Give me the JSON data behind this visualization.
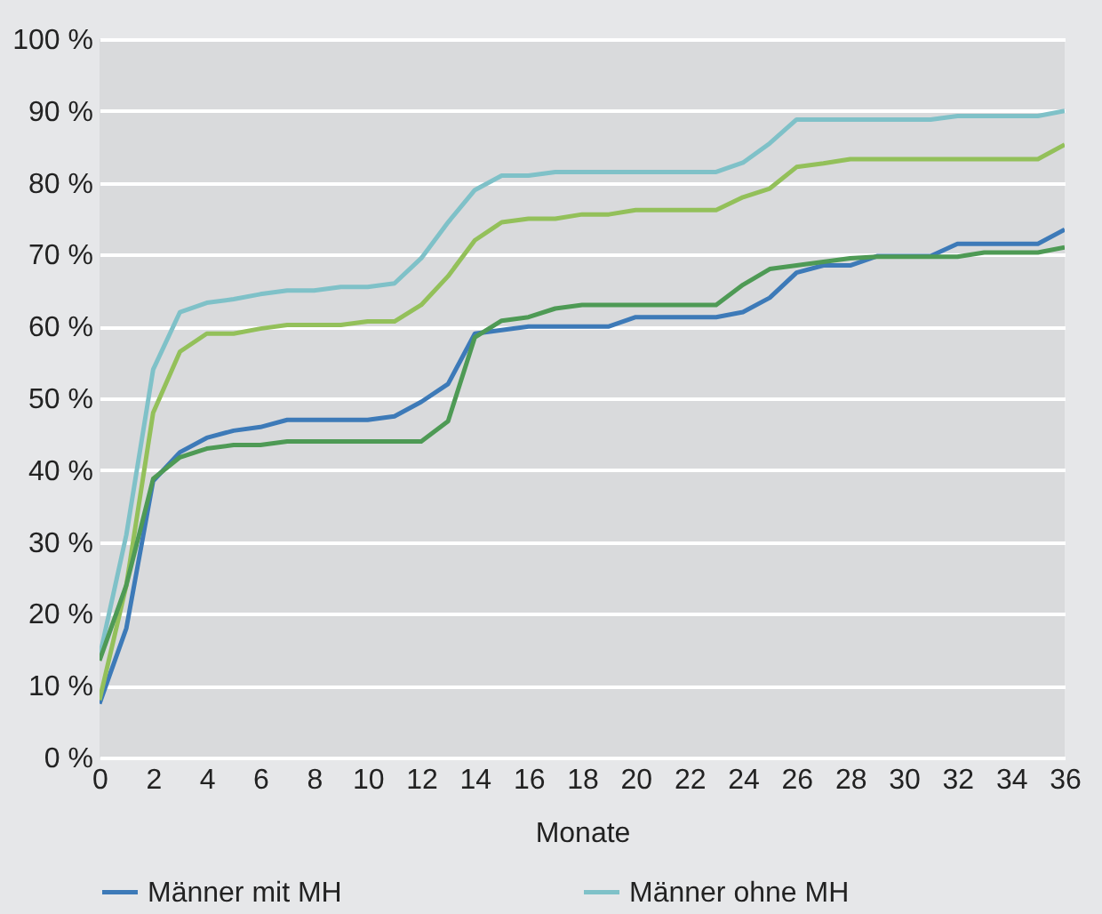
{
  "chart_data": {
    "type": "line",
    "xlabel": "Monate",
    "x": [
      0,
      1,
      2,
      3,
      4,
      5,
      6,
      7,
      8,
      9,
      10,
      11,
      12,
      13,
      14,
      15,
      16,
      17,
      18,
      19,
      20,
      21,
      22,
      23,
      24,
      25,
      26,
      27,
      28,
      29,
      30,
      31,
      32,
      33,
      34,
      35,
      36
    ],
    "series": [
      {
        "name": "Männer mit MH",
        "color": "#3d7ab8",
        "values": [
          7.5,
          18,
          38.5,
          42.5,
          44.5,
          45.5,
          46,
          47,
          47,
          47,
          47,
          47.5,
          49.5,
          52,
          59,
          59.5,
          60,
          60,
          60,
          60,
          61.3,
          61.3,
          61.3,
          61.3,
          62,
          64,
          67.5,
          68.5,
          68.5,
          69.8,
          69.8,
          69.8,
          71.5,
          71.5,
          71.5,
          71.5,
          73.5
        ]
      },
      {
        "name": "Männer ohne MH",
        "color": "#7fc1c8",
        "values": [
          14,
          31,
          54,
          62,
          63.3,
          63.8,
          64.5,
          65,
          65,
          65.5,
          65.5,
          66,
          69.5,
          74.5,
          79,
          81,
          81,
          81.5,
          81.5,
          81.5,
          81.5,
          81.5,
          81.5,
          81.5,
          82.8,
          85.5,
          88.8,
          88.8,
          88.8,
          88.8,
          88.8,
          88.8,
          89.3,
          89.3,
          89.3,
          89.3,
          90
        ]
      },
      {
        "color": "#93c05a",
        "values": [
          8,
          24,
          48,
          56.5,
          59,
          59,
          59.7,
          60.2,
          60.2,
          60.2,
          60.7,
          60.7,
          63,
          67,
          72,
          74.5,
          75,
          75,
          75.6,
          75.6,
          76.2,
          76.2,
          76.2,
          76.2,
          78,
          79.2,
          82.2,
          82.7,
          83.3,
          83.3,
          83.3,
          83.3,
          83.3,
          83.3,
          83.3,
          83.3,
          85.3
        ]
      },
      {
        "color": "#4e9a55",
        "values": [
          13.5,
          24,
          38.8,
          41.8,
          43,
          43.5,
          43.5,
          44,
          44,
          44,
          44,
          44,
          44,
          46.8,
          58.5,
          60.8,
          61.3,
          62.5,
          63,
          63,
          63,
          63,
          63,
          63,
          65.8,
          68,
          68.5,
          69,
          69.5,
          69.7,
          69.7,
          69.7,
          69.7,
          70.3,
          70.3,
          70.3,
          71
        ]
      }
    ],
    "xlim": [
      0,
      36
    ],
    "xticks": [
      0,
      2,
      4,
      6,
      8,
      10,
      12,
      14,
      16,
      18,
      20,
      22,
      24,
      26,
      28,
      30,
      32,
      34,
      36
    ],
    "ylim": [
      0,
      100
    ],
    "yticks": [
      {
        "value": 0,
        "label": "0 %"
      },
      {
        "value": 10,
        "label": "10 %"
      },
      {
        "value": 20,
        "label": "20 %"
      },
      {
        "value": 30,
        "label": "30 %"
      },
      {
        "value": 40,
        "label": "40 %"
      },
      {
        "value": 50,
        "label": "50 %"
      },
      {
        "value": 60,
        "label": "60 %"
      },
      {
        "value": 70,
        "label": "70 %"
      },
      {
        "value": 80,
        "label": "80 %"
      },
      {
        "value": 90,
        "label": "90 %"
      },
      {
        "value": 100,
        "label": "100 %"
      }
    ],
    "grid": "y",
    "legend": "bottom",
    "marker": "none",
    "line_style": "solid"
  }
}
